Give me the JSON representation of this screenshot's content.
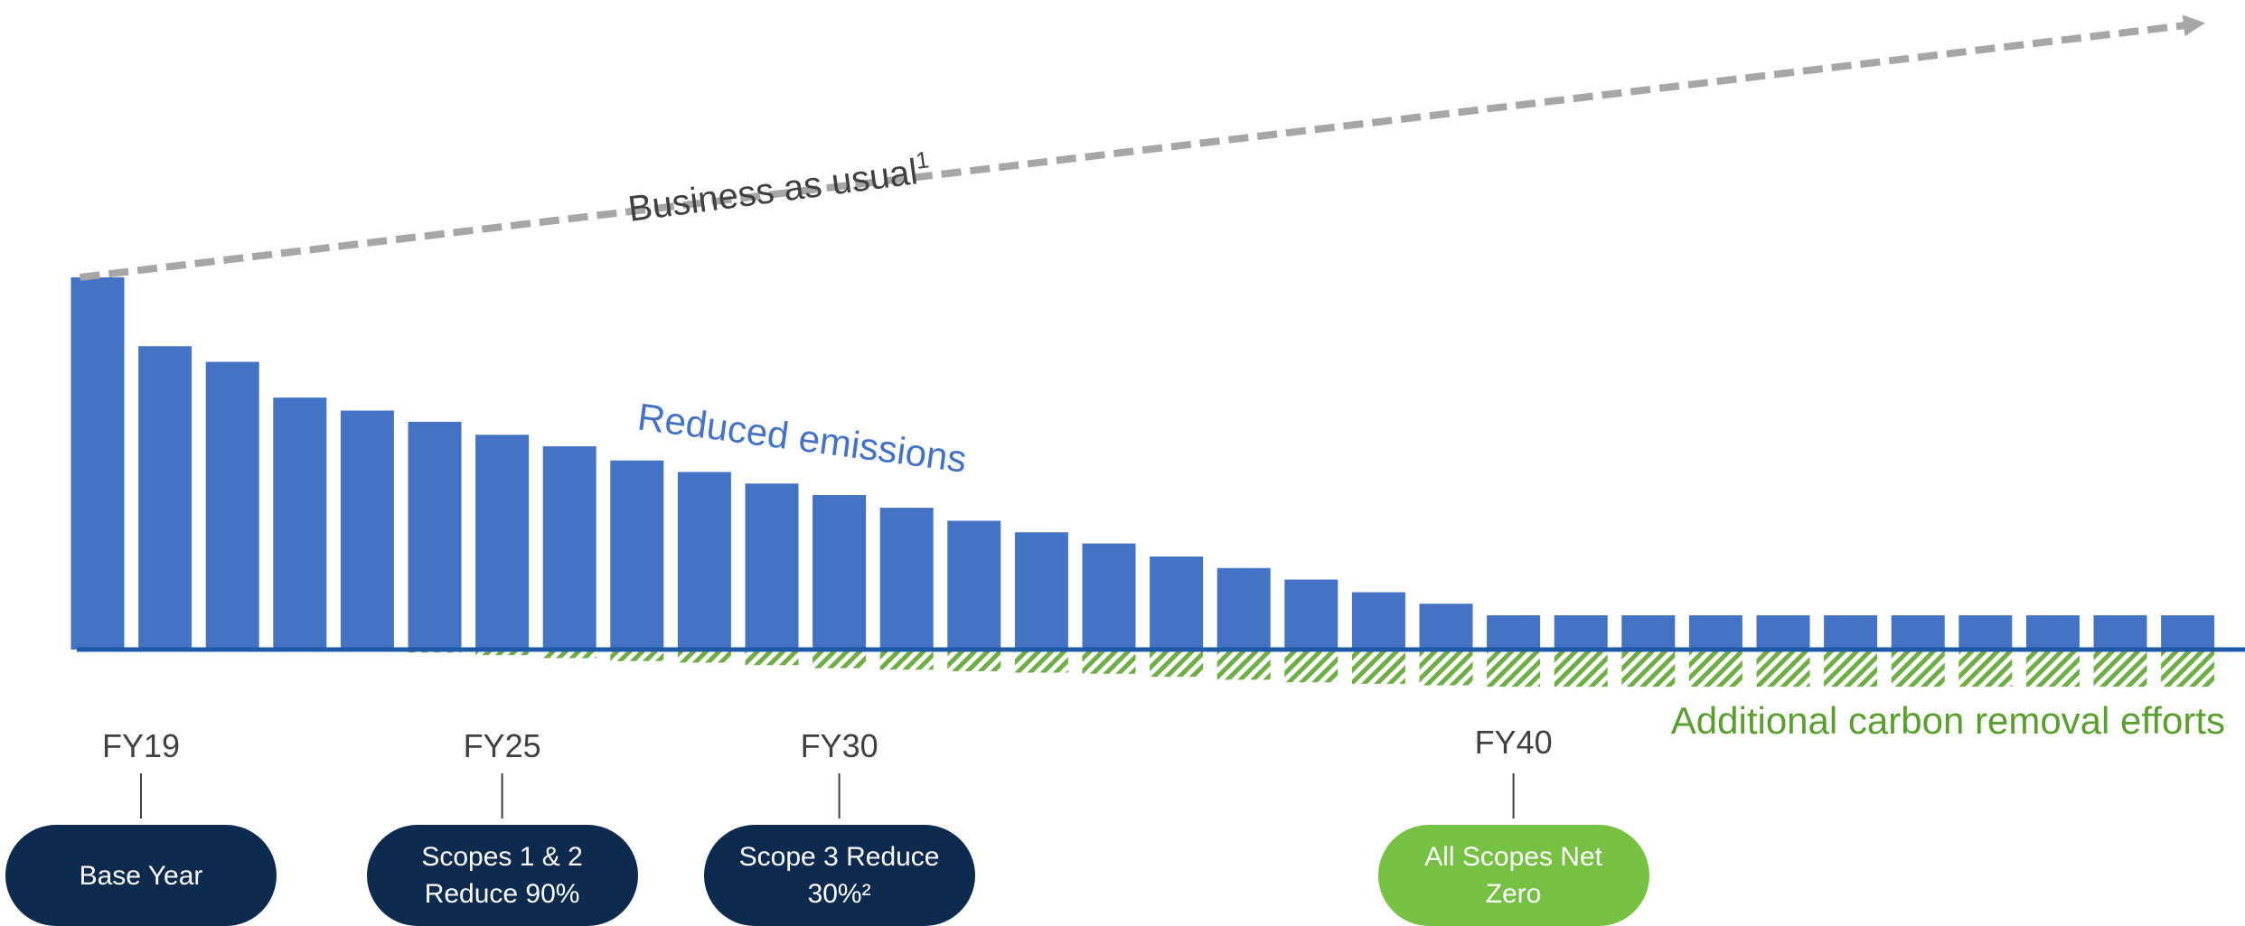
{
  "chart_data": {
    "type": "bar",
    "series": [
      {
        "values": [
          100,
          81.5,
          77.3,
          67.7,
          64.2,
          61.2,
          57.7,
          54.6,
          50.8,
          47.7,
          44.6,
          41.5,
          38.1,
          34.6,
          31.5,
          28.5,
          25.0,
          21.9,
          18.8,
          15.4,
          12.3,
          9.2,
          9.2,
          9.2,
          9.2,
          9.2,
          9.2,
          9.2,
          9.2,
          9.2,
          9.2,
          9.2
        ]
      },
      {
        "values": [
          0,
          0,
          0,
          0,
          0,
          -0.8,
          -1.5,
          -2.3,
          -3.1,
          -3.5,
          -4.2,
          -5.0,
          -5.4,
          -5.8,
          -6.2,
          -6.5,
          -7.3,
          -8.1,
          -8.8,
          -9.2,
          -9.6,
          -10.0,
          -10.0,
          -10.0,
          -10.0,
          -10.0,
          -10.0,
          -10.0,
          -10.0,
          -10.0,
          -10.0,
          -10.0
        ]
      }
    ],
    "bau_line": {
      "start": 100,
      "end": 168
    },
    "ticks": [
      {
        "label": "FY19",
        "index": 0
      },
      {
        "label": "FY25",
        "index": 6
      },
      {
        "label": "FY30",
        "index": 11
      },
      {
        "label": "FY40",
        "index": 21
      }
    ],
    "annotations": {
      "business_as_usual": "Business as usual",
      "business_as_usual_sup": "1",
      "reduced_emissions": "Reduced emissions",
      "carbon_removal": "Additional carbon removal efforts"
    },
    "colors": {
      "bars": "#4472C4",
      "baseline": "#1f5aa8",
      "removal": "#70AD47",
      "bau_line": "#a6a6a6"
    }
  },
  "milestones": [
    {
      "label": "Base Year",
      "color": "#0e2a4f",
      "tick": "FY19"
    },
    {
      "label": "Scopes 1 & 2\nReduce 90%",
      "color": "#0e2a4f",
      "tick": "FY25"
    },
    {
      "label": "Scope 3 Reduce\n30%²",
      "color": "#0e2a4f",
      "tick": "FY30"
    },
    {
      "label": "All Scopes Net\nZero",
      "color": "#76c043",
      "tick": "FY40"
    }
  ]
}
